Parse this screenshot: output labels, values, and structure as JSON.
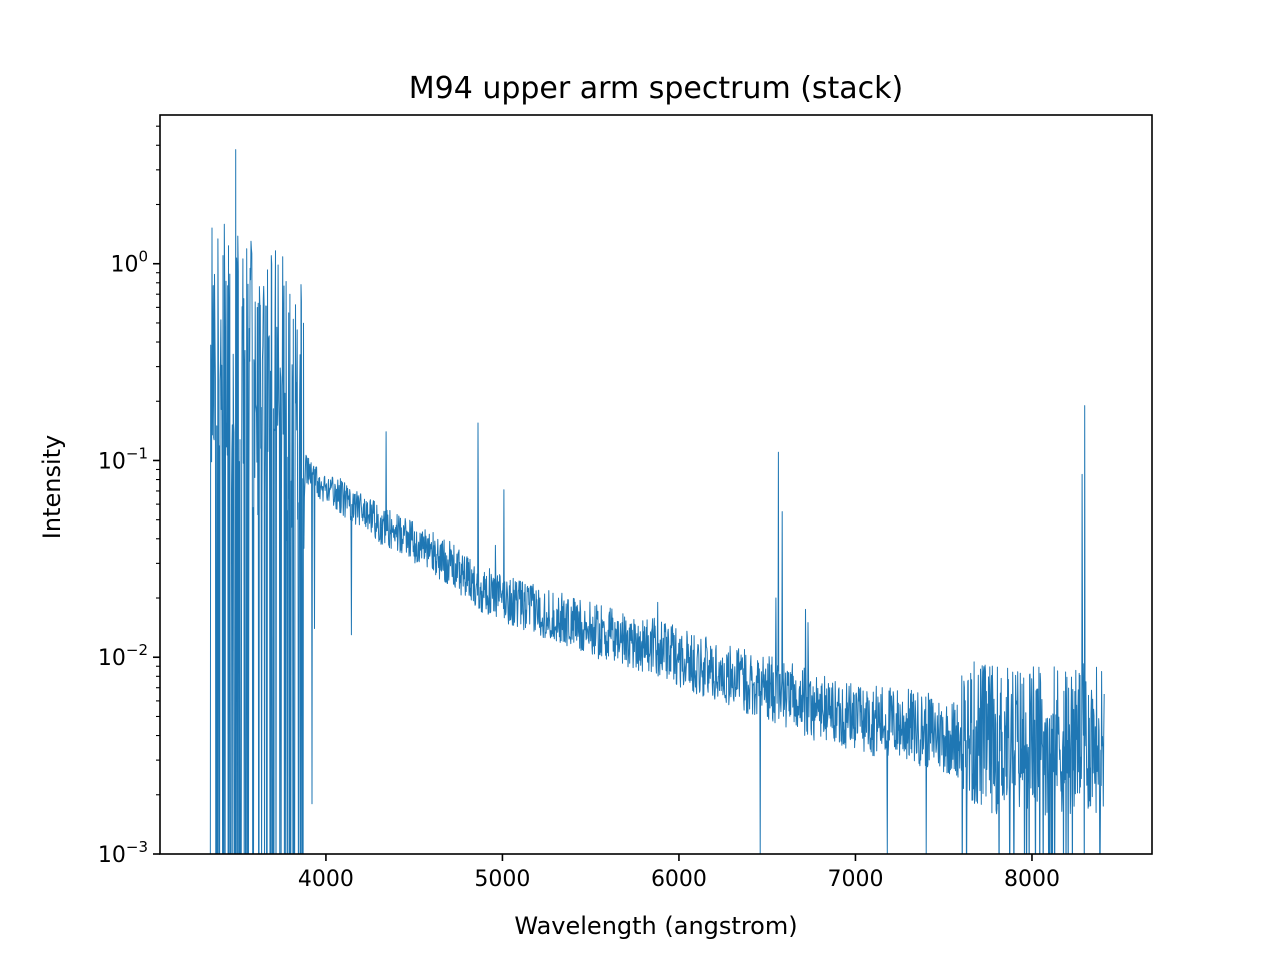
{
  "chart_data": {
    "type": "line",
    "title": "M94 upper arm spectrum (stack)",
    "xlabel": "Wavelength (angstrom)",
    "ylabel": "Intensity",
    "xlim": [
      3060,
      8680
    ],
    "ylim": [
      0.001,
      5.7
    ],
    "yscale": "log",
    "grid": false,
    "x_ticks": [
      4000,
      5000,
      6000,
      7000,
      8000
    ],
    "x_tick_labels": [
      "4000",
      "5000",
      "6000",
      "7000",
      "8000"
    ],
    "y_ticks": [
      0.001,
      0.01,
      0.1,
      1
    ],
    "y_tick_labels": [
      {
        "base": "10",
        "exp": "−3"
      },
      {
        "base": "10",
        "exp": "−2"
      },
      {
        "base": "10",
        "exp": "−1"
      },
      {
        "base": "10",
        "exp": "0"
      }
    ],
    "series": [
      {
        "color": "#1f77b4",
        "line_width": 1.0,
        "x_range": [
          3345,
          8410
        ],
        "continuum": [
          [
            3345,
            0.2
          ],
          [
            3450,
            0.17
          ],
          [
            3600,
            0.14
          ],
          [
            3750,
            0.11
          ],
          [
            3900,
            0.085
          ],
          [
            4100,
            0.065
          ],
          [
            4300,
            0.048
          ],
          [
            4500,
            0.038
          ],
          [
            4700,
            0.03
          ],
          [
            4850,
            0.023
          ],
          [
            5000,
            0.02
          ],
          [
            5300,
            0.016
          ],
          [
            5600,
            0.013
          ],
          [
            5900,
            0.011
          ],
          [
            6200,
            0.0085
          ],
          [
            6500,
            0.007
          ],
          [
            6800,
            0.0055
          ],
          [
            7000,
            0.005
          ],
          [
            7300,
            0.0045
          ],
          [
            7600,
            0.0038
          ],
          [
            7800,
            0.0035
          ],
          [
            8000,
            0.0035
          ],
          [
            8200,
            0.0035
          ],
          [
            8410,
            0.0035
          ]
        ],
        "emission_lines": [
          {
            "x": 3490,
            "y": 3.8
          },
          {
            "x": 3670,
            "y": 0.93
          },
          {
            "x": 4340,
            "y": 0.14
          },
          {
            "x": 4861,
            "y": 0.155
          },
          {
            "x": 4959,
            "y": 0.037
          },
          {
            "x": 5007,
            "y": 0.071
          },
          {
            "x": 5880,
            "y": 0.019
          },
          {
            "x": 6548,
            "y": 0.02
          },
          {
            "x": 6563,
            "y": 0.11
          },
          {
            "x": 6584,
            "y": 0.055
          },
          {
            "x": 6717,
            "y": 0.0175
          },
          {
            "x": 6731,
            "y": 0.015
          },
          {
            "x": 8285,
            "y": 0.085
          },
          {
            "x": 8298,
            "y": 0.19
          }
        ],
        "dips": [
          {
            "x": 3920,
            "y": 0.0018
          },
          {
            "x": 3935,
            "y": 0.014
          },
          {
            "x": 4145,
            "y": 0.013
          },
          {
            "x": 6460,
            "y": 0.001
          },
          {
            "x": 7180,
            "y": 0.001
          },
          {
            "x": 7400,
            "y": 0.001
          }
        ]
      }
    ]
  }
}
